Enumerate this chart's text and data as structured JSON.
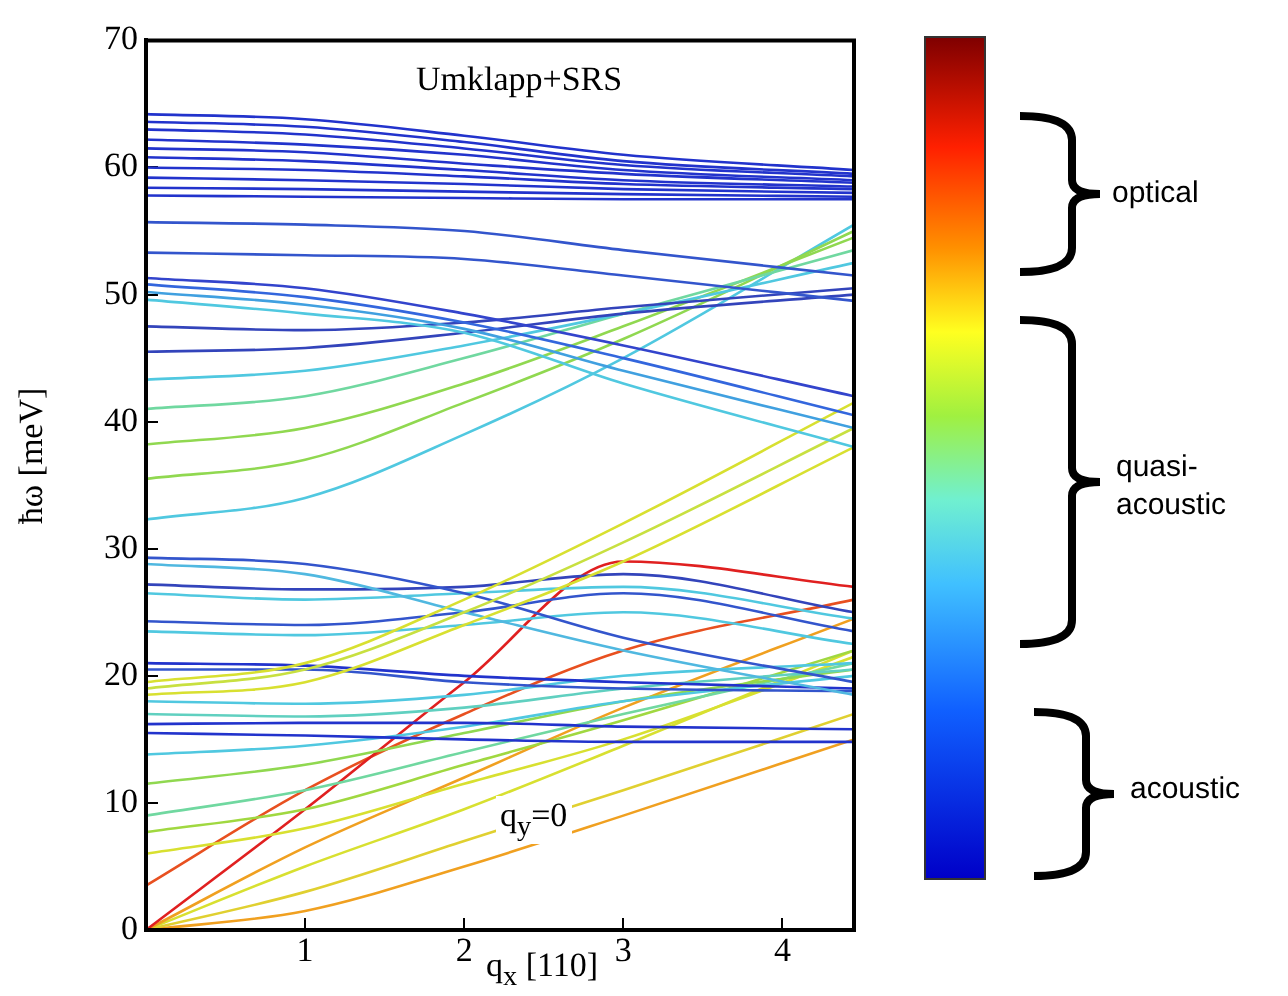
{
  "chart_data": {
    "type": "line",
    "title": "Umklapp+SRS",
    "xlabel": "q$_{x}$ [110]",
    "ylabel": "ħω [meV]",
    "annotations": [
      "q$_{y}$=0",
      "optical",
      "quasi-acoustic",
      "acoustic"
    ],
    "x": [
      0,
      1,
      2,
      3,
      4.45
    ],
    "xlim": [
      0,
      4.45
    ],
    "xticks": [
      1,
      2,
      3,
      4
    ],
    "ylim": [
      0,
      70
    ],
    "yticks": [
      0,
      10,
      20,
      30,
      40,
      50,
      60,
      70
    ],
    "grid": false,
    "legend": false,
    "marker": "none",
    "line_style": "solid",
    "series": [
      {
        "color": "#2233cc",
        "values": [
          64.2,
          63.8,
          62.5,
          61,
          59.8
        ]
      },
      {
        "color": "#2233cc",
        "values": [
          63.6,
          63.2,
          62,
          60.5,
          59.5
        ]
      },
      {
        "color": "#2233cc",
        "values": [
          63,
          62.6,
          61.5,
          60.2,
          59.3
        ]
      },
      {
        "color": "#2233cc",
        "values": [
          62.2,
          61.8,
          61,
          59.8,
          59
        ]
      },
      {
        "color": "#2233cc",
        "values": [
          61.5,
          61.2,
          60.3,
          59.5,
          58.8
        ]
      },
      {
        "color": "#2233cc",
        "values": [
          60.8,
          60.5,
          59.8,
          59,
          58.5
        ]
      },
      {
        "color": "#2233cc",
        "values": [
          60,
          59.8,
          59.3,
          58.7,
          58.3
        ]
      },
      {
        "color": "#2233cc",
        "values": [
          59.2,
          59,
          58.7,
          58.3,
          58
        ]
      },
      {
        "color": "#2233cc",
        "values": [
          58.4,
          58.3,
          58.1,
          57.9,
          57.7
        ]
      },
      {
        "color": "#2233cc",
        "values": [
          57.8,
          57.7,
          57.6,
          57.5,
          57.5
        ]
      },
      {
        "color": "#3355cc",
        "values": [
          55.7,
          55.5,
          55,
          53.5,
          51.5
        ]
      },
      {
        "color": "#3355cc",
        "values": [
          53.3,
          53.1,
          52.8,
          51.5,
          49.5
        ]
      },
      {
        "color": "#3344cc",
        "values": [
          51.3,
          50.5,
          48.5,
          46,
          42
        ]
      },
      {
        "color": "#3366dd",
        "values": [
          50.8,
          49.8,
          47.8,
          45,
          40.5
        ]
      },
      {
        "color": "#40a0e0",
        "values": [
          50.2,
          49.2,
          47.3,
          44,
          39.5
        ]
      },
      {
        "color": "#50c8e0",
        "values": [
          49.6,
          48.5,
          47,
          43,
          38
        ]
      },
      {
        "color": "#3344bb",
        "values": [
          47.5,
          47.2,
          47.8,
          49,
          50.5
        ]
      },
      {
        "color": "#3344bb",
        "values": [
          45.5,
          45.8,
          47,
          48.5,
          50
        ]
      },
      {
        "color": "#50c8e0",
        "values": [
          43.3,
          44,
          46,
          48.5,
          52.5
        ]
      },
      {
        "color": "#70d8a0",
        "values": [
          41,
          42,
          45,
          48.5,
          53.5
        ]
      },
      {
        "color": "#90d850",
        "values": [
          38.2,
          39.5,
          43,
          47.5,
          54.5
        ]
      },
      {
        "color": "#90d850",
        "values": [
          35.5,
          37,
          41.5,
          46.5,
          55
        ]
      },
      {
        "color": "#50c8e0",
        "values": [
          32.3,
          34,
          39,
          45,
          55.5
        ]
      },
      {
        "color": "#d8e030",
        "values": [
          19.5,
          21,
          26,
          32,
          41.5
        ]
      },
      {
        "color": "#c8e040",
        "values": [
          19,
          20.5,
          25,
          30.5,
          39.5
        ]
      },
      {
        "color": "#d8e030",
        "values": [
          18.5,
          19.5,
          24,
          29,
          38
        ]
      },
      {
        "color": "#3355cc",
        "values": [
          29.3,
          28.8,
          26.5,
          23,
          19.5
        ]
      },
      {
        "color": "#50b8e0",
        "values": [
          28.8,
          28,
          25,
          22,
          18.5
        ]
      },
      {
        "color": "#3344bb",
        "values": [
          27.2,
          26.8,
          27,
          28,
          25
        ]
      },
      {
        "color": "#50c8e0",
        "values": [
          26.5,
          26,
          26.5,
          27,
          24.5
        ]
      },
      {
        "color": "#3355cc",
        "values": [
          24.3,
          24,
          25,
          26.5,
          23.5
        ]
      },
      {
        "color": "#50c8e0",
        "values": [
          23.5,
          23.2,
          24,
          25,
          22.5
        ]
      },
      {
        "color": "#2233cc",
        "values": [
          21,
          20.8,
          20,
          19.5,
          19
        ]
      },
      {
        "color": "#3355cc",
        "values": [
          20.5,
          20.5,
          19.5,
          19,
          18.8
        ]
      },
      {
        "color": "#50c8e0",
        "values": [
          18,
          17.8,
          18.5,
          20,
          21
        ]
      },
      {
        "color": "#60d0c0",
        "values": [
          17,
          16.8,
          17.5,
          19,
          20.5
        ]
      },
      {
        "color": "#2233cc",
        "values": [
          16.2,
          16.3,
          16.3,
          16,
          15.8
        ]
      },
      {
        "color": "#2233cc",
        "values": [
          15.5,
          15.3,
          15,
          14.8,
          14.8
        ]
      },
      {
        "color": "#50c8e0",
        "values": [
          13.8,
          14.5,
          16,
          18,
          20
        ]
      },
      {
        "color": "#90d850",
        "values": [
          11.5,
          13,
          15.5,
          18,
          20.5
        ]
      },
      {
        "color": "#70d8a0",
        "values": [
          9,
          11,
          14,
          17,
          21
        ]
      },
      {
        "color": "#a0d840",
        "values": [
          7.7,
          9.5,
          13,
          16.5,
          22
        ]
      },
      {
        "color": "#d8e030",
        "values": [
          6,
          8,
          11.5,
          15,
          21.5
        ]
      },
      {
        "color": "#e02020",
        "values": [
          0,
          9.5,
          19.5,
          29,
          27
        ]
      },
      {
        "color": "#e85020",
        "values": [
          3.5,
          11,
          17,
          22,
          26
        ]
      },
      {
        "color": "#f0a020",
        "values": [
          0,
          6.5,
          12,
          17.5,
          24.5
        ]
      },
      {
        "color": "#d8e030",
        "values": [
          0,
          5,
          9.5,
          14.5,
          22
        ]
      },
      {
        "color": "#e0d030",
        "values": [
          0,
          3,
          7,
          11,
          17
        ]
      },
      {
        "color": "#f0a020",
        "values": [
          0,
          1.5,
          5,
          9,
          15
        ]
      }
    ]
  }
}
